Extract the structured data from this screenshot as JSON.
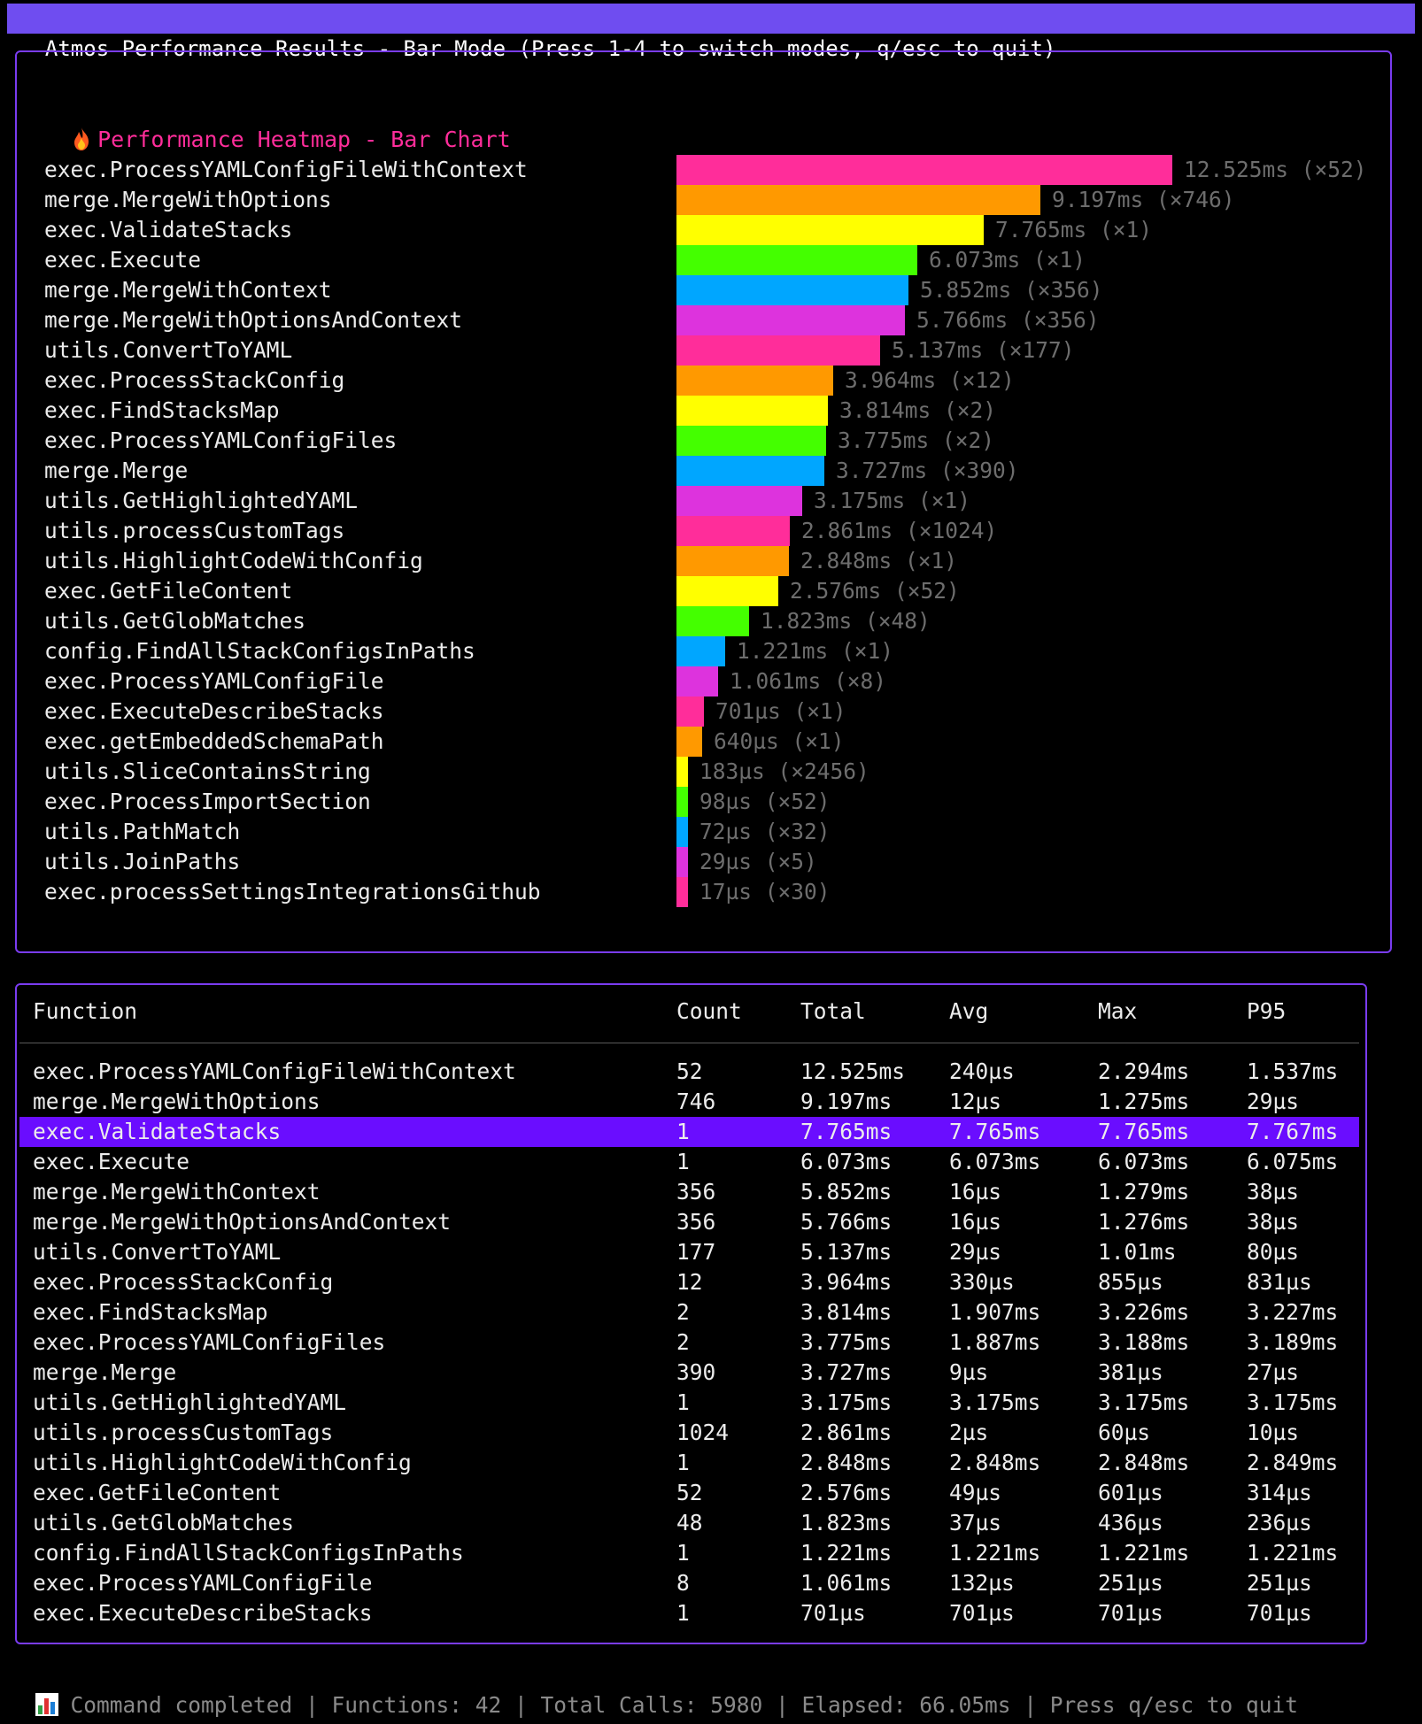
{
  "window": {
    "title": "Atmos Performance Results - Bar Mode (Press 1-4 to switch modes, q/esc to quit)"
  },
  "heatmap": {
    "icon": "fire-icon",
    "title": "Performance Heatmap - Bar Chart",
    "bar_colors": [
      "#ff2d9a",
      "#ff9900",
      "#ffff00",
      "#44ff00",
      "#00a6ff",
      "#dd33dd"
    ],
    "value_color": "#6d6d6d",
    "scale_max_ms": 12.525
  },
  "chart_data": {
    "type": "bar",
    "orientation": "horizontal",
    "title": "Performance Heatmap - Bar Chart",
    "unit": "ms",
    "categories": [
      "exec.ProcessYAMLConfigFileWithContext",
      "merge.MergeWithOptions",
      "exec.ValidateStacks",
      "exec.Execute",
      "merge.MergeWithContext",
      "merge.MergeWithOptionsAndContext",
      "utils.ConvertToYAML",
      "exec.ProcessStackConfig",
      "exec.FindStacksMap",
      "exec.ProcessYAMLConfigFiles",
      "merge.Merge",
      "utils.GetHighlightedYAML",
      "utils.processCustomTags",
      "utils.HighlightCodeWithConfig",
      "exec.GetFileContent",
      "utils.GetGlobMatches",
      "config.FindAllStackConfigsInPaths",
      "exec.ProcessYAMLConfigFile",
      "exec.ExecuteDescribeStacks",
      "exec.getEmbeddedSchemaPath",
      "utils.SliceContainsString",
      "exec.ProcessImportSection",
      "utils.PathMatch",
      "utils.JoinPaths",
      "exec.processSettingsIntegrationsGithub"
    ],
    "values": [
      12.525,
      9.197,
      7.765,
      6.073,
      5.852,
      5.766,
      5.137,
      3.964,
      3.814,
      3.775,
      3.727,
      3.175,
      2.861,
      2.848,
      2.576,
      1.823,
      1.221,
      1.061,
      0.701,
      0.64,
      0.183,
      0.098,
      0.072,
      0.029,
      0.017
    ],
    "labels": [
      "12.525ms (×52)",
      "9.197ms (×746)",
      "7.765ms (×1)",
      "6.073ms (×1)",
      "5.852ms (×356)",
      "5.766ms (×356)",
      "5.137ms (×177)",
      "3.964ms (×12)",
      "3.814ms (×2)",
      "3.775ms (×2)",
      "3.727ms (×390)",
      "3.175ms (×1)",
      "2.861ms (×1024)",
      "2.848ms (×1)",
      "2.576ms (×52)",
      "1.823ms (×48)",
      "1.221ms (×1)",
      "1.061ms (×8)",
      "701µs (×1)",
      "640µs (×1)",
      "183µs (×2456)",
      "98µs (×52)",
      "72µs (×32)",
      "29µs (×5)",
      "17µs (×30)"
    ]
  },
  "table": {
    "headers": [
      "Function",
      "Count",
      "Total",
      "Avg",
      "Max",
      "P95"
    ],
    "selected_index": 2,
    "selected_color": "#6a0dff",
    "rows": [
      [
        "exec.ProcessYAMLConfigFileWithContext",
        "52",
        "12.525ms",
        "240µs",
        "2.294ms",
        "1.537ms"
      ],
      [
        "merge.MergeWithOptions",
        "746",
        "9.197ms",
        "12µs",
        "1.275ms",
        "29µs"
      ],
      [
        "exec.ValidateStacks",
        "1",
        "7.765ms",
        "7.765ms",
        "7.765ms",
        "7.767ms"
      ],
      [
        "exec.Execute",
        "1",
        "6.073ms",
        "6.073ms",
        "6.073ms",
        "6.075ms"
      ],
      [
        "merge.MergeWithContext",
        "356",
        "5.852ms",
        "16µs",
        "1.279ms",
        "38µs"
      ],
      [
        "merge.MergeWithOptionsAndContext",
        "356",
        "5.766ms",
        "16µs",
        "1.276ms",
        "38µs"
      ],
      [
        "utils.ConvertToYAML",
        "177",
        "5.137ms",
        "29µs",
        "1.01ms",
        "80µs"
      ],
      [
        "exec.ProcessStackConfig",
        "12",
        "3.964ms",
        "330µs",
        "855µs",
        "831µs"
      ],
      [
        "exec.FindStacksMap",
        "2",
        "3.814ms",
        "1.907ms",
        "3.226ms",
        "3.227ms"
      ],
      [
        "exec.ProcessYAMLConfigFiles",
        "2",
        "3.775ms",
        "1.887ms",
        "3.188ms",
        "3.189ms"
      ],
      [
        "merge.Merge",
        "390",
        "3.727ms",
        "9µs",
        "381µs",
        "27µs"
      ],
      [
        "utils.GetHighlightedYAML",
        "1",
        "3.175ms",
        "3.175ms",
        "3.175ms",
        "3.175ms"
      ],
      [
        "utils.processCustomTags",
        "1024",
        "2.861ms",
        "2µs",
        "60µs",
        "10µs"
      ],
      [
        "utils.HighlightCodeWithConfig",
        "1",
        "2.848ms",
        "2.848ms",
        "2.848ms",
        "2.849ms"
      ],
      [
        "exec.GetFileContent",
        "52",
        "2.576ms",
        "49µs",
        "601µs",
        "314µs"
      ],
      [
        "utils.GetGlobMatches",
        "48",
        "1.823ms",
        "37µs",
        "436µs",
        "236µs"
      ],
      [
        "config.FindAllStackConfigsInPaths",
        "1",
        "1.221ms",
        "1.221ms",
        "1.221ms",
        "1.221ms"
      ],
      [
        "exec.ProcessYAMLConfigFile",
        "8",
        "1.061ms",
        "132µs",
        "251µs",
        "251µs"
      ],
      [
        "exec.ExecuteDescribeStacks",
        "1",
        "701µs",
        "701µs",
        "701µs",
        "701µs"
      ]
    ]
  },
  "status": {
    "icon": "bar-chart-icon",
    "text": "Command completed | Functions: 42 | Total Calls: 5980 | Elapsed: 66.05ms | Press q/esc to quit"
  }
}
